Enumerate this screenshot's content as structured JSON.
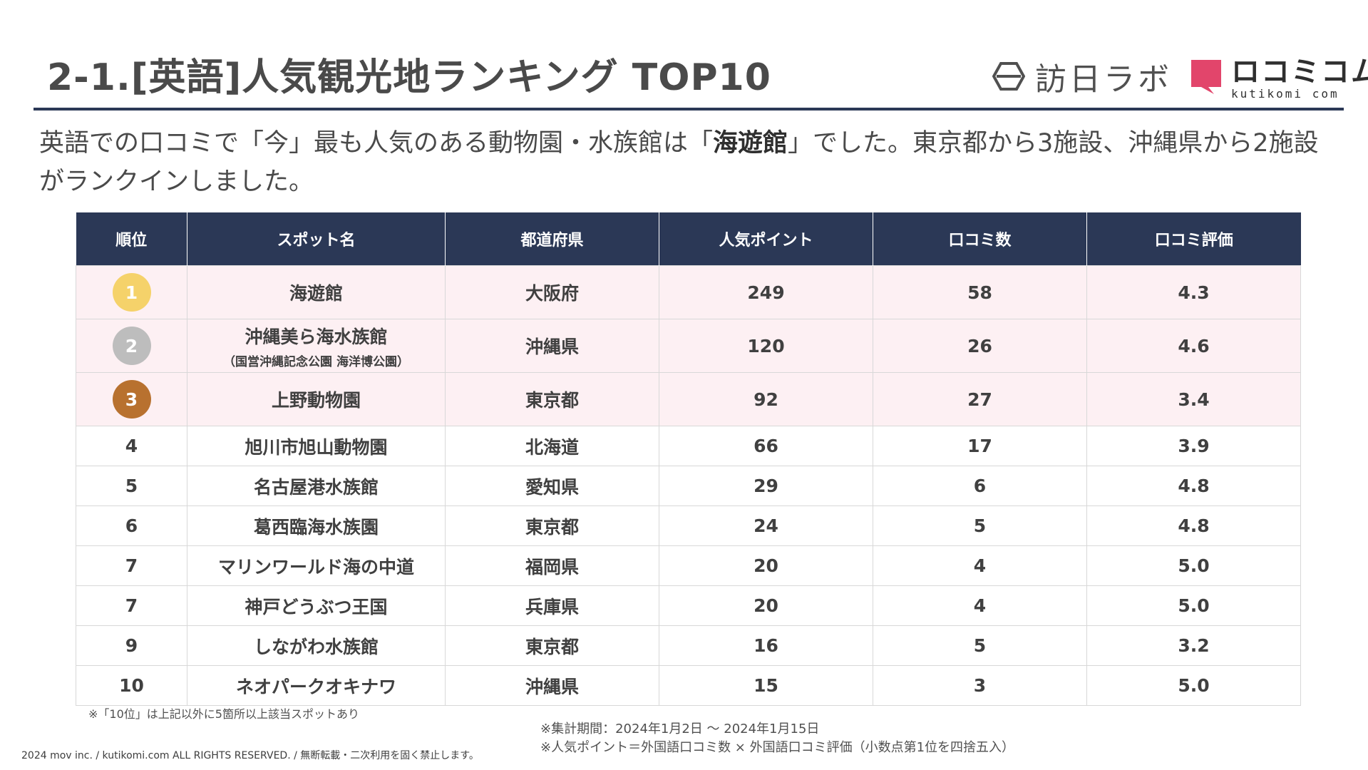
{
  "title": "2-1.[英語]人気観光地ランキング TOP10",
  "logos": {
    "brand1": "訪日ラボ",
    "brand2": "ロコミコム",
    "brand2_sub": "kutikomi com",
    "brand2_color": "#e2456b"
  },
  "lead": {
    "part1": "英語での口コミで「今」最も人気のある動物園・水族館は「",
    "bold": "海遊館",
    "part2": "」でした。東京都から3施設、沖縄県から2施設がランクインしました。"
  },
  "table": {
    "headers": [
      "順位",
      "スポット名",
      "都道府県",
      "人気ポイント",
      "口コミ数",
      "口コミ評価"
    ],
    "top_rows": [
      {
        "rank": "1",
        "name": "海遊館",
        "sub": "",
        "pref": "大阪府",
        "points": "249",
        "count": "58",
        "rating": "4.3",
        "medal_color": "#f5d26a"
      },
      {
        "rank": "2",
        "name": "沖縄美ら海水族館",
        "sub": "（国営沖縄記念公園 海洋博公園）",
        "pref": "沖縄県",
        "points": "120",
        "count": "26",
        "rating": "4.6",
        "medal_color": "#bdbdbd"
      },
      {
        "rank": "3",
        "name": "上野動物園",
        "sub": "",
        "pref": "東京都",
        "points": "92",
        "count": "27",
        "rating": "3.4",
        "medal_color": "#b8712f"
      }
    ],
    "rows": [
      {
        "rank": "4",
        "name": "旭川市旭山動物園",
        "pref": "北海道",
        "points": "66",
        "count": "17",
        "rating": "3.9"
      },
      {
        "rank": "5",
        "name": "名古屋港水族館",
        "pref": "愛知県",
        "points": "29",
        "count": "6",
        "rating": "4.8"
      },
      {
        "rank": "6",
        "name": "葛西臨海水族園",
        "pref": "東京都",
        "points": "24",
        "count": "5",
        "rating": "4.8"
      },
      {
        "rank": "7",
        "name": "マリンワールド海の中道",
        "pref": "福岡県",
        "points": "20",
        "count": "4",
        "rating": "5.0"
      },
      {
        "rank": "7",
        "name": "神戸どうぶつ王国",
        "pref": "兵庫県",
        "points": "20",
        "count": "4",
        "rating": "5.0"
      },
      {
        "rank": "9",
        "name": "しながわ水族館",
        "pref": "東京都",
        "points": "16",
        "count": "5",
        "rating": "3.2"
      },
      {
        "rank": "10",
        "name": "ネオパークオキナワ",
        "pref": "沖縄県",
        "points": "15",
        "count": "3",
        "rating": "5.0"
      }
    ]
  },
  "notes": {
    "tenth": "※「10位」は上記以外に5箇所以上該当スポットあり",
    "period": "※集計期間：2024年1月2日 〜 2024年1月15日",
    "formula": "※人気ポイント＝外国語口コミ数 × 外国語口コミ評価（小数点第1位を四捨五入）"
  },
  "copyright": "2024 mov inc. / kutikomi.com ALL RIGHTS RESERVED. / 無断転載・二次利用を固く禁止します。"
}
